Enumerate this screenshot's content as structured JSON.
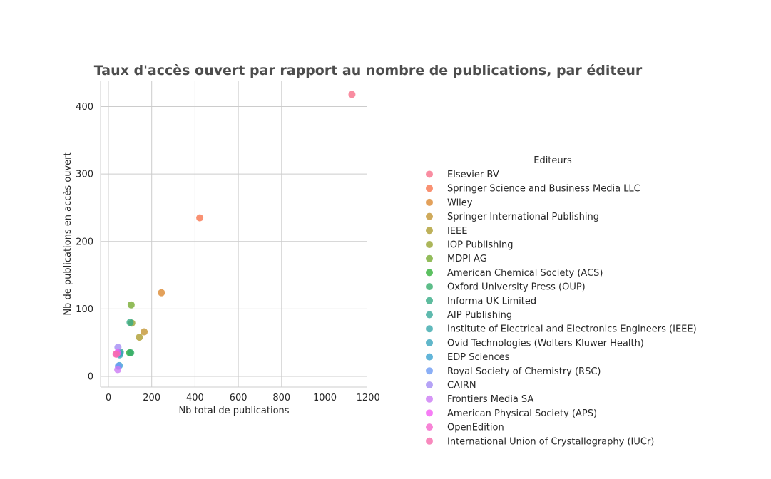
{
  "chart_data": {
    "type": "scatter",
    "title": "Taux d'accès ouvert par rapport au nombre de publications, par éditeur",
    "xlabel": "Nb total de publications",
    "ylabel": "Nb de publications en accès ouvert",
    "xlim": [
      -40,
      1200
    ],
    "ylim": [
      -15,
      440
    ],
    "xticks": [
      "0",
      "200",
      "400",
      "600",
      "800",
      "1000",
      "1200"
    ],
    "yticks": [
      "0",
      "100",
      "200",
      "300",
      "400"
    ],
    "xtick_values": [
      0,
      200,
      400,
      600,
      800,
      1000,
      1200
    ],
    "ytick_values": [
      0,
      100,
      200,
      300,
      400
    ],
    "grid": true,
    "legend_title": "Editeurs",
    "legend_position": "right",
    "series": [
      {
        "name": "Elsevier BV",
        "color": "#f77189",
        "x": [
          1125
        ],
        "y": [
          418
        ]
      },
      {
        "name": "Springer Science and Business Media LLC",
        "color": "#f7754f",
        "x": [
          422
        ],
        "y": [
          235
        ]
      },
      {
        "name": "Wiley",
        "color": "#dc8932",
        "x": [
          245
        ],
        "y": [
          124
        ]
      },
      {
        "name": "Springer International Publishing",
        "color": "#c39532",
        "x": [
          165
        ],
        "y": [
          66
        ]
      },
      {
        "name": "IEEE",
        "color": "#ae9d31",
        "x": [
          143
        ],
        "y": [
          58
        ]
      },
      {
        "name": "IOP Publishing",
        "color": "#97a431",
        "x": [
          108
        ],
        "y": [
          79
        ]
      },
      {
        "name": "MDPI AG",
        "color": "#77ab31",
        "x": [
          105
        ],
        "y": [
          106
        ]
      },
      {
        "name": "American Chemical Society (ACS)",
        "color": "#33b039",
        "x": [
          98
        ],
        "y": [
          35
        ]
      },
      {
        "name": "Oxford University Press (OUP)",
        "color": "#35ad6b",
        "x": [
          103
        ],
        "y": [
          35
        ]
      },
      {
        "name": "Informa UK Limited",
        "color": "#36ab86",
        "x": [
          100
        ],
        "y": [
          80
        ]
      },
      {
        "name": "AIP Publishing",
        "color": "#37a99a",
        "x": [
          55
        ],
        "y": [
          36
        ]
      },
      {
        "name": "Institute of Electrical and Electronics Engineers (IEEE)",
        "color": "#38a7ab",
        "x": [
          53
        ],
        "y": [
          34
        ]
      },
      {
        "name": "Ovid Technologies (Wolters Kluwer Health)",
        "color": "#39a5bd",
        "x": [
          52
        ],
        "y": [
          32
        ]
      },
      {
        "name": "EDP Sciences",
        "color": "#3ba3d0",
        "x": [
          50
        ],
        "y": [
          16
        ]
      },
      {
        "name": "Royal Society of Chemistry (RSC)",
        "color": "#6e9bf4",
        "x": [
          46
        ],
        "y": [
          15
        ]
      },
      {
        "name": "CAIRN",
        "color": "#a38cf4",
        "x": [
          44
        ],
        "y": [
          43
        ]
      },
      {
        "name": "Frontiers Media SA",
        "color": "#cc7af4",
        "x": [
          43
        ],
        "y": [
          10
        ]
      },
      {
        "name": "American Physical Society (APS)",
        "color": "#f45cf2",
        "x": [
          42
        ],
        "y": [
          35
        ]
      },
      {
        "name": "OpenEdition",
        "color": "#f565cc",
        "x": [
          38
        ],
        "y": [
          33
        ]
      },
      {
        "name": "International Union of Crystallography (IUCr)",
        "color": "#f66bad",
        "x": [
          35
        ],
        "y": [
          33
        ]
      }
    ]
  }
}
